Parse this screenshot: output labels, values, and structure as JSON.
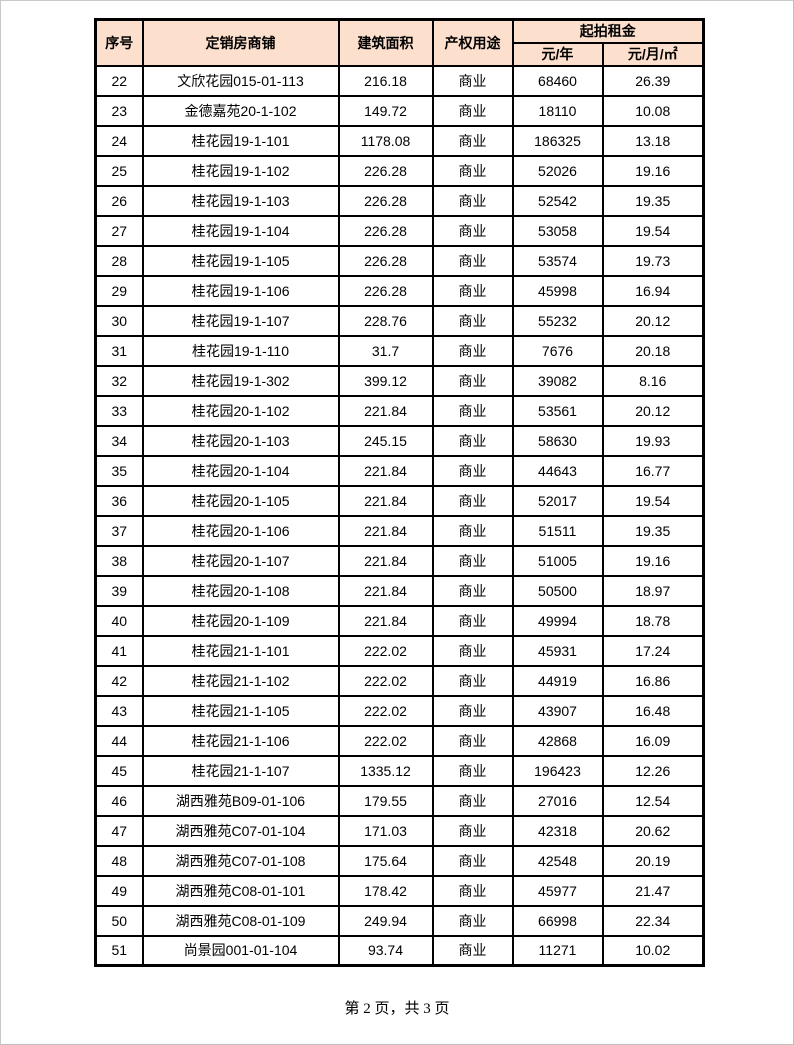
{
  "table": {
    "header": {
      "index": "序号",
      "shop": "定销房商铺",
      "area": "建筑面积",
      "use": "产权用途",
      "rent_group": "起拍租金",
      "rent_per_year": "元/年",
      "rent_per_month_sqm": "元/月/㎡"
    },
    "rows": [
      [
        "22",
        "文欣花园015-01-113",
        "216.18",
        "商业",
        "68460",
        "26.39"
      ],
      [
        "23",
        "金德嘉苑20-1-102",
        "149.72",
        "商业",
        "18110",
        "10.08"
      ],
      [
        "24",
        "桂花园19-1-101",
        "1178.08",
        "商业",
        "186325",
        "13.18"
      ],
      [
        "25",
        "桂花园19-1-102",
        "226.28",
        "商业",
        "52026",
        "19.16"
      ],
      [
        "26",
        "桂花园19-1-103",
        "226.28",
        "商业",
        "52542",
        "19.35"
      ],
      [
        "27",
        "桂花园19-1-104",
        "226.28",
        "商业",
        "53058",
        "19.54"
      ],
      [
        "28",
        "桂花园19-1-105",
        "226.28",
        "商业",
        "53574",
        "19.73"
      ],
      [
        "29",
        "桂花园19-1-106",
        "226.28",
        "商业",
        "45998",
        "16.94"
      ],
      [
        "30",
        "桂花园19-1-107",
        "228.76",
        "商业",
        "55232",
        "20.12"
      ],
      [
        "31",
        "桂花园19-1-110",
        "31.7",
        "商业",
        "7676",
        "20.18"
      ],
      [
        "32",
        "桂花园19-1-302",
        "399.12",
        "商业",
        "39082",
        "8.16"
      ],
      [
        "33",
        "桂花园20-1-102",
        "221.84",
        "商业",
        "53561",
        "20.12"
      ],
      [
        "34",
        "桂花园20-1-103",
        "245.15",
        "商业",
        "58630",
        "19.93"
      ],
      [
        "35",
        "桂花园20-1-104",
        "221.84",
        "商业",
        "44643",
        "16.77"
      ],
      [
        "36",
        "桂花园20-1-105",
        "221.84",
        "商业",
        "52017",
        "19.54"
      ],
      [
        "37",
        "桂花园20-1-106",
        "221.84",
        "商业",
        "51511",
        "19.35"
      ],
      [
        "38",
        "桂花园20-1-107",
        "221.84",
        "商业",
        "51005",
        "19.16"
      ],
      [
        "39",
        "桂花园20-1-108",
        "221.84",
        "商业",
        "50500",
        "18.97"
      ],
      [
        "40",
        "桂花园20-1-109",
        "221.84",
        "商业",
        "49994",
        "18.78"
      ],
      [
        "41",
        "桂花园21-1-101",
        "222.02",
        "商业",
        "45931",
        "17.24"
      ],
      [
        "42",
        "桂花园21-1-102",
        "222.02",
        "商业",
        "44919",
        "16.86"
      ],
      [
        "43",
        "桂花园21-1-105",
        "222.02",
        "商业",
        "43907",
        "16.48"
      ],
      [
        "44",
        "桂花园21-1-106",
        "222.02",
        "商业",
        "42868",
        "16.09"
      ],
      [
        "45",
        "桂花园21-1-107",
        "1335.12",
        "商业",
        "196423",
        "12.26"
      ],
      [
        "46",
        "湖西雅苑B09-01-106",
        "179.55",
        "商业",
        "27016",
        "12.54"
      ],
      [
        "47",
        "湖西雅苑C07-01-104",
        "171.03",
        "商业",
        "42318",
        "20.62"
      ],
      [
        "48",
        "湖西雅苑C07-01-108",
        "175.64",
        "商业",
        "42548",
        "20.19"
      ],
      [
        "49",
        "湖西雅苑C08-01-101",
        "178.42",
        "商业",
        "45977",
        "21.47"
      ],
      [
        "50",
        "湖西雅苑C08-01-109",
        "249.94",
        "商业",
        "66998",
        "22.34"
      ],
      [
        "51",
        "尚景园001-01-104",
        "93.74",
        "商业",
        "11271",
        "10.02"
      ]
    ],
    "cell_names": [
      "cell-index",
      "cell-shop-name",
      "cell-building-area",
      "cell-property-use",
      "cell-rent-per-year",
      "cell-rent-per-month-sqm"
    ]
  },
  "footer": {
    "page_label": "第 2 页，共 3 页"
  },
  "colors": {
    "header_bg": "#fcdfcc",
    "border": "#000000",
    "page_edge": "#c9c9c9"
  }
}
